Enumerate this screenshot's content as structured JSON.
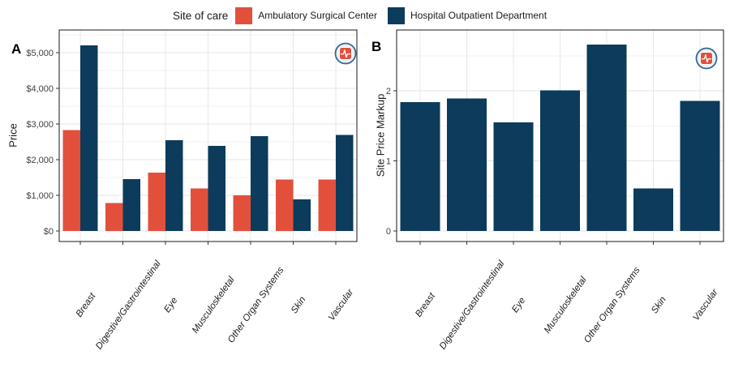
{
  "legend": {
    "title": "Site of care",
    "items": [
      {
        "label": "Ambulatory Surgical Center",
        "color": "#E2503C"
      },
      {
        "label": "Hospital Outpatient Department",
        "color": "#0C3B5B"
      }
    ]
  },
  "logo": {
    "icon": "pulse-logo-icon",
    "ring_color": "#33688F",
    "badge_fill": "#EAF0F5",
    "square_color": "#E2503C",
    "pulse_color": "#FFFFFF"
  },
  "style_colors": {
    "panel_border": "#1A1A1A",
    "grid_major": "#E4E4E4",
    "grid_minor": "#F2F2F2",
    "grid_vertical": "#E7E7E7",
    "tick": "#333333",
    "tick_label": "#404040",
    "category_label": "#1a1a1a"
  },
  "chart_data": [
    {
      "id": "A",
      "panel_label": "A",
      "type": "bar",
      "title": "",
      "xlabel": "",
      "ylabel": "Price",
      "legend_position": "top",
      "grid": "on",
      "categories": [
        "Breast",
        "Digestive/Gastrointestinal",
        "Eye",
        "Musculoskeletal",
        "Other Organ Systems",
        "Skin",
        "Vascular"
      ],
      "series": [
        {
          "name": "Ambulatory Surgical Center",
          "color": "#E2503C",
          "values": [
            2830,
            780,
            1640,
            1190,
            1000,
            1450,
            1450
          ]
        },
        {
          "name": "Hospital Outpatient Department",
          "color": "#0C3B5B",
          "values": [
            5210,
            1460,
            2550,
            2390,
            2660,
            890,
            2690
          ]
        }
      ],
      "y_ticks": {
        "values": [
          0,
          1000,
          2000,
          3000,
          4000,
          5000
        ],
        "labels": [
          "$0",
          "$1,000",
          "$2,000",
          "$3,000",
          "$4,000",
          "$5,000"
        ]
      },
      "grid_major": [
        0,
        1000,
        2000,
        3000,
        4000,
        5000
      ],
      "grid_minor": [
        500,
        1500,
        2500,
        3500,
        4500,
        5500
      ],
      "ylim": [
        -295,
        5640
      ]
    },
    {
      "id": "B",
      "panel_label": "B",
      "type": "bar",
      "title": "",
      "xlabel": "",
      "ylabel": "Site Price Markup",
      "legend_position": "none",
      "grid": "on",
      "categories": [
        "Breast",
        "Digestive/Gastrointestinal",
        "Eye",
        "Musculoskeletal",
        "Other Organ Systems",
        "Skin",
        "Vascular"
      ],
      "series": [
        {
          "name": "Hospital Outpatient Department",
          "color": "#0C3B5B",
          "values": [
            1.84,
            1.89,
            1.55,
            2.01,
            2.66,
            0.61,
            1.86
          ]
        }
      ],
      "y_ticks": {
        "values": [
          0,
          1,
          2
        ],
        "labels": [
          "0",
          "1",
          "2"
        ]
      },
      "grid_major": [
        0,
        1,
        2
      ],
      "grid_minor": [
        0.5,
        1.5,
        2.5
      ],
      "ylim": [
        -0.15,
        2.87
      ]
    }
  ]
}
